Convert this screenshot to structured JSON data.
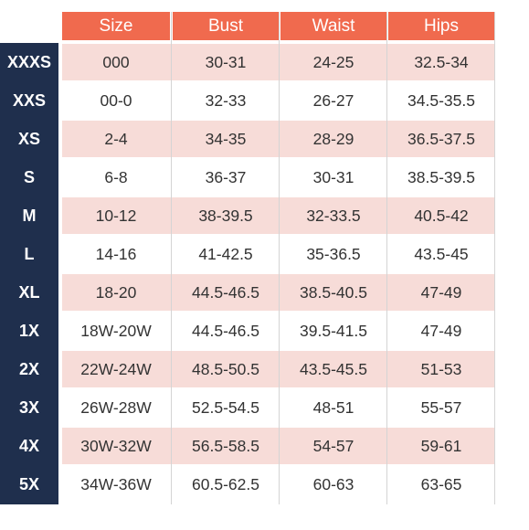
{
  "table": {
    "headers": [
      "Size",
      "Bust",
      "Waist",
      "Hips"
    ],
    "rows": [
      {
        "label": "XXXS",
        "cells": [
          "000",
          "30-31",
          "24-25",
          "32.5-34"
        ]
      },
      {
        "label": "XXS",
        "cells": [
          "00-0",
          "32-33",
          "26-27",
          "34.5-35.5"
        ]
      },
      {
        "label": "XS",
        "cells": [
          "2-4",
          "34-35",
          "28-29",
          "36.5-37.5"
        ]
      },
      {
        "label": "S",
        "cells": [
          "6-8",
          "36-37",
          "30-31",
          "38.5-39.5"
        ]
      },
      {
        "label": "M",
        "cells": [
          "10-12",
          "38-39.5",
          "32-33.5",
          "40.5-42"
        ]
      },
      {
        "label": "L",
        "cells": [
          "14-16",
          "41-42.5",
          "35-36.5",
          "43.5-45"
        ]
      },
      {
        "label": "XL",
        "cells": [
          "18-20",
          "44.5-46.5",
          "38.5-40.5",
          "47-49"
        ]
      },
      {
        "label": "1X",
        "cells": [
          "18W-20W",
          "44.5-46.5",
          "39.5-41.5",
          "47-49"
        ]
      },
      {
        "label": "2X",
        "cells": [
          "22W-24W",
          "48.5-50.5",
          "43.5-45.5",
          "51-53"
        ]
      },
      {
        "label": "3X",
        "cells": [
          "26W-28W",
          "52.5-54.5",
          "48-51",
          "55-57"
        ]
      },
      {
        "label": "4X",
        "cells": [
          "30W-32W",
          "56.5-58.5",
          "54-57",
          "59-61"
        ]
      },
      {
        "label": "5X",
        "cells": [
          "34W-36W",
          "60.5-62.5",
          "60-63",
          "63-65"
        ]
      }
    ]
  },
  "colors": {
    "header_bg": "#f06a4e",
    "label_column_bg": "#1f2f4d",
    "stripe_bg": "#f7dcd8"
  }
}
